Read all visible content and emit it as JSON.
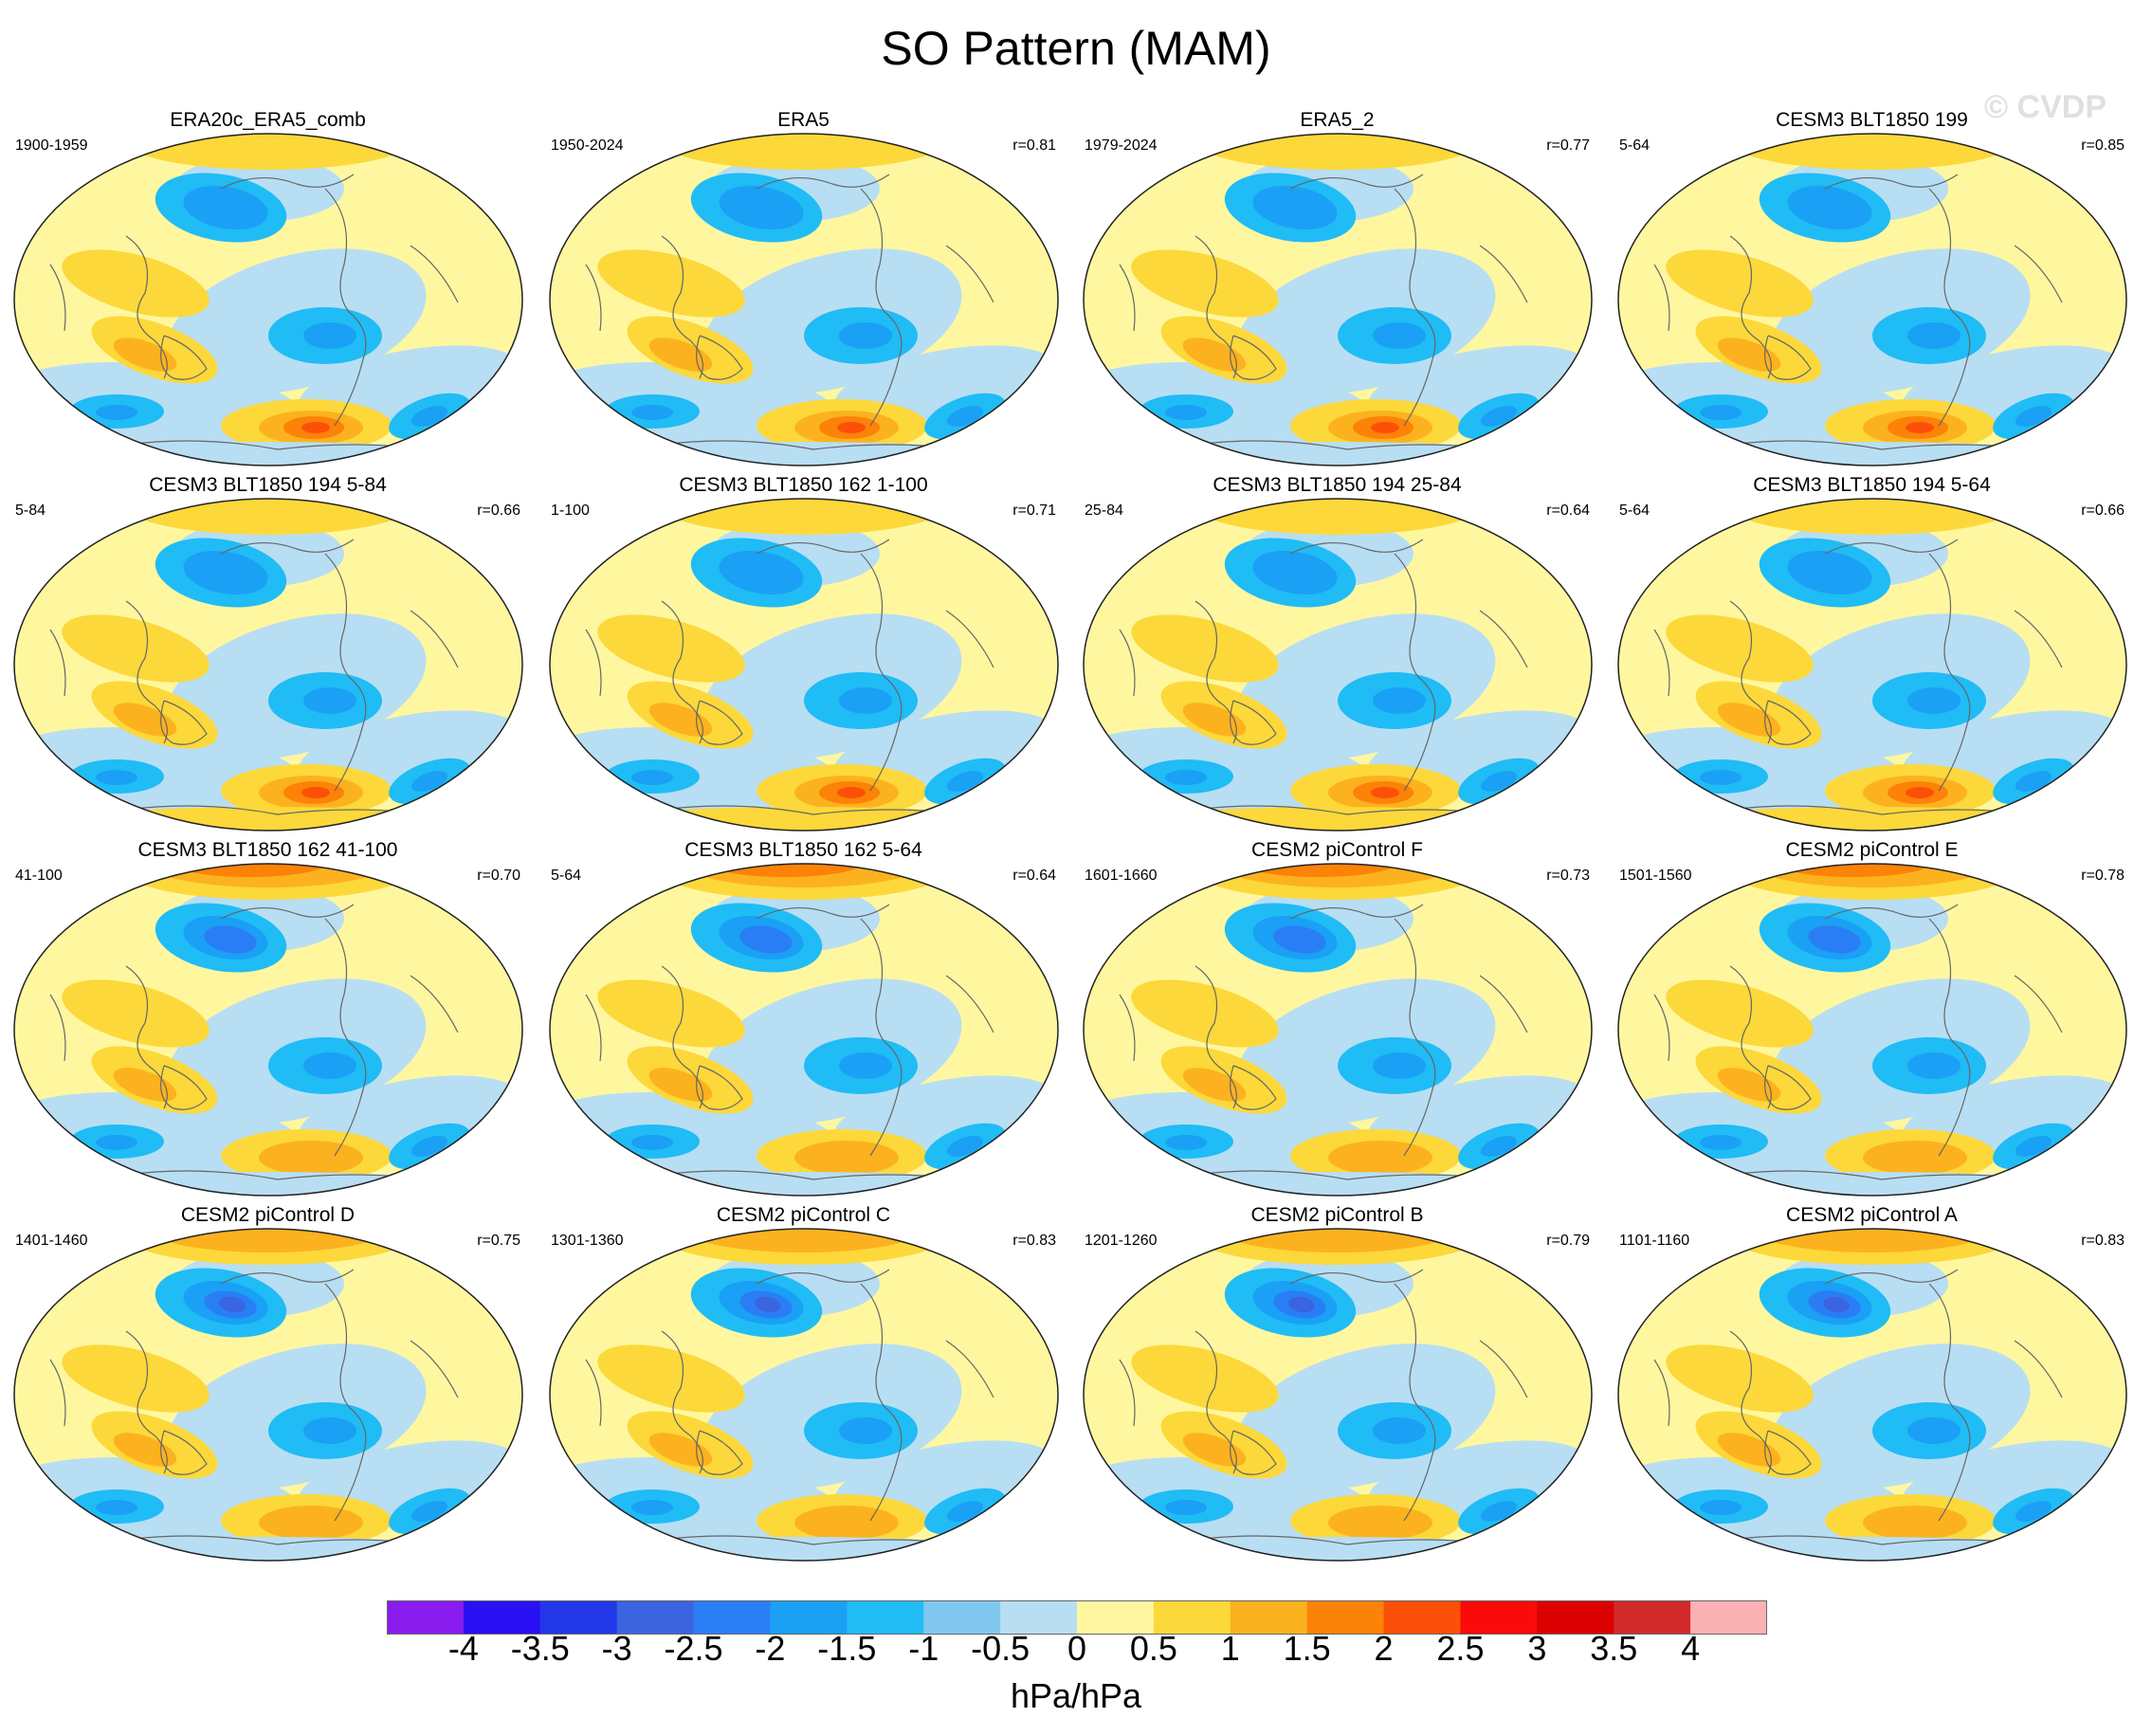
{
  "title": "SO Pattern (MAM)",
  "watermark": "© CVDP",
  "panels": [
    {
      "title": "ERA20c_ERA5_comb",
      "period": "1900-1959",
      "r": "",
      "style": 0
    },
    {
      "title": "ERA5",
      "period": "1950-2024",
      "r": "r=0.81",
      "style": 0
    },
    {
      "title": "ERA5_2",
      "period": "1979-2024",
      "r": "r=0.77",
      "style": 0
    },
    {
      "title": "CESM3 BLT1850 199",
      "period": "5-64",
      "r": "r=0.85",
      "style": 0
    },
    {
      "title": "CESM3 BLT1850 194 5-84",
      "period": "5-84",
      "r": "r=0.66",
      "style": 1
    },
    {
      "title": "CESM3 BLT1850 162 1-100",
      "period": "1-100",
      "r": "r=0.71",
      "style": 1
    },
    {
      "title": "CESM3 BLT1850 194 25-84",
      "period": "25-84",
      "r": "r=0.64",
      "style": 1
    },
    {
      "title": "CESM3 BLT1850 194 5-64",
      "period": "5-64",
      "r": "r=0.66",
      "style": 1
    },
    {
      "title": "CESM3 BLT1850 162 41-100",
      "period": "41-100",
      "r": "r=0.70",
      "style": 2
    },
    {
      "title": "CESM3 BLT1850 162 5-64",
      "period": "5-64",
      "r": "r=0.64",
      "style": 2
    },
    {
      "title": "CESM2 piControl F",
      "period": "1601-1660",
      "r": "r=0.73",
      "style": 2
    },
    {
      "title": "CESM2 piControl E",
      "period": "1501-1560",
      "r": "r=0.78",
      "style": 2
    },
    {
      "title": "CESM2 piControl D",
      "period": "1401-1460",
      "r": "r=0.75",
      "style": 3
    },
    {
      "title": "CESM2 piControl C",
      "period": "1301-1360",
      "r": "r=0.83",
      "style": 3
    },
    {
      "title": "CESM2 piControl B",
      "period": "1201-1260",
      "r": "r=0.79",
      "style": 3
    },
    {
      "title": "CESM2 piControl A",
      "period": "1101-1160",
      "r": "r=0.83",
      "style": 3
    }
  ],
  "colorbar": {
    "labels": [
      "-4",
      "-3.5",
      "-3",
      "-2.5",
      "-2",
      "-1.5",
      "-1",
      "-0.5",
      "0",
      "0.5",
      "1",
      "1.5",
      "2",
      "2.5",
      "3",
      "3.5",
      "4"
    ],
    "colors": [
      "#8a1cf0",
      "#2a10f5",
      "#2238e8",
      "#3b64e0",
      "#2a7ef5",
      "#1aa0f5",
      "#20bcf5",
      "#80c8f0",
      "#b8def3",
      "#fff7a0",
      "#fcd83a",
      "#fcb21e",
      "#fc8208",
      "#fc5008",
      "#fc0a0a",
      "#dc0000",
      "#d22a2a",
      "#fcb2b4"
    ],
    "units": "hPa/hPa"
  }
}
